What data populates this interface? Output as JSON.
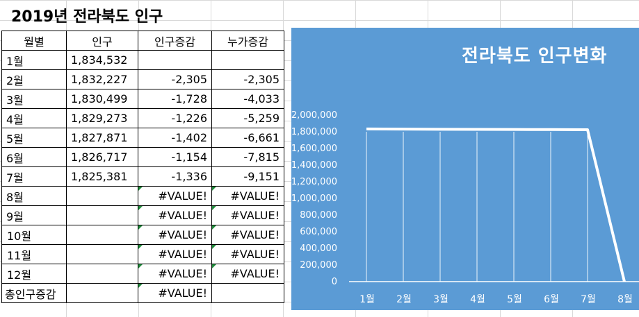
{
  "title": "2019년 전라북도 인구",
  "table": {
    "headers": [
      "월별",
      "인구",
      "인구증감",
      "누가증감"
    ],
    "rows": [
      {
        "month": "1월",
        "pop": "1,834,532",
        "chg": "",
        "cum": ""
      },
      {
        "month": "2월",
        "pop": "1,832,227",
        "chg": "-2,305",
        "cum": "-2,305"
      },
      {
        "month": "3월",
        "pop": "1,830,499",
        "chg": "-1,728",
        "cum": "-4,033"
      },
      {
        "month": "4월",
        "pop": "1,829,273",
        "chg": "-1,226",
        "cum": "-5,259"
      },
      {
        "month": "5월",
        "pop": "1,827,871",
        "chg": "-1,402",
        "cum": "-6,661"
      },
      {
        "month": "6월",
        "pop": "1,826,717",
        "chg": "-1,154",
        "cum": "-7,815"
      },
      {
        "month": "7월",
        "pop": "1,825,381",
        "chg": "-1,336",
        "cum": "-9,151"
      },
      {
        "month": "8월",
        "pop": "",
        "chg": "#VALUE!",
        "cum": "#VALUE!"
      },
      {
        "month": "9월",
        "pop": "",
        "chg": "#VALUE!",
        "cum": "#VALUE!"
      },
      {
        "month": "10월",
        "pop": "",
        "chg": "#VALUE!",
        "cum": "#VALUE!"
      },
      {
        "month": "11월",
        "pop": "",
        "chg": "#VALUE!",
        "cum": "#VALUE!"
      },
      {
        "month": "12월",
        "pop": "",
        "chg": "#VALUE!",
        "cum": "#VALUE!"
      }
    ],
    "total": {
      "label": "총인구증감",
      "chg": "#VALUE!"
    }
  },
  "colors": {
    "chart_bg": "#5b9bd5",
    "negative": "#e00000",
    "line": "#ffffff"
  },
  "chart_data": {
    "type": "line",
    "title": "전라북도 인구변화",
    "categories": [
      "1월",
      "2월",
      "3월",
      "4월",
      "5월",
      "6월",
      "7월",
      "8월"
    ],
    "series": [
      {
        "values": [
          1834532,
          1832227,
          1830499,
          1829273,
          1827871,
          1826717,
          1825381,
          0
        ]
      }
    ],
    "y_ticks": [
      "2,000,000",
      "1,800,000",
      "1,600,000",
      "1,400,000",
      "1,200,000",
      "1,000,000",
      "800,000",
      "600,000",
      "400,000",
      "200,000",
      "0"
    ],
    "ylim": [
      0,
      2000000
    ],
    "grid": "vertical",
    "legend": "none"
  }
}
